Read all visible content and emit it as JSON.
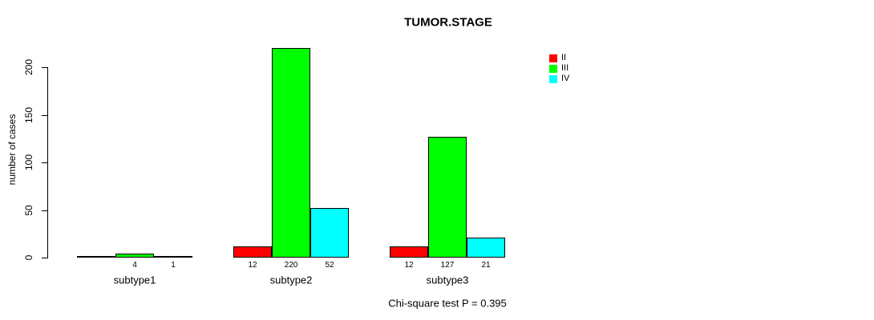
{
  "chart_data": {
    "type": "bar",
    "title": "TUMOR.STAGE",
    "ylabel": "number of cases",
    "xlabel": "",
    "footnote": "Chi-square test P = 0.395",
    "categories": [
      "subtype1",
      "subtype2",
      "subtype3"
    ],
    "series": [
      {
        "name": "II",
        "color": "#ff0000",
        "values": [
          0,
          12,
          12
        ],
        "value_labels": [
          "",
          "12",
          "12"
        ]
      },
      {
        "name": "III",
        "color": "#00ff00",
        "values": [
          4,
          220,
          127
        ],
        "value_labels": [
          "4",
          "220",
          "127"
        ]
      },
      {
        "name": "IV",
        "color": "#00ffff",
        "values": [
          1,
          52,
          21
        ],
        "value_labels": [
          "1",
          "52",
          "21"
        ]
      }
    ],
    "ylim": [
      0,
      200
    ],
    "yticks": [
      0,
      50,
      100,
      150,
      200
    ],
    "grid": false,
    "legend": {
      "position": "top-right",
      "entries": [
        "II",
        "III",
        "IV"
      ]
    },
    "bar_border_color": "#000000",
    "background": "#ffffff"
  }
}
